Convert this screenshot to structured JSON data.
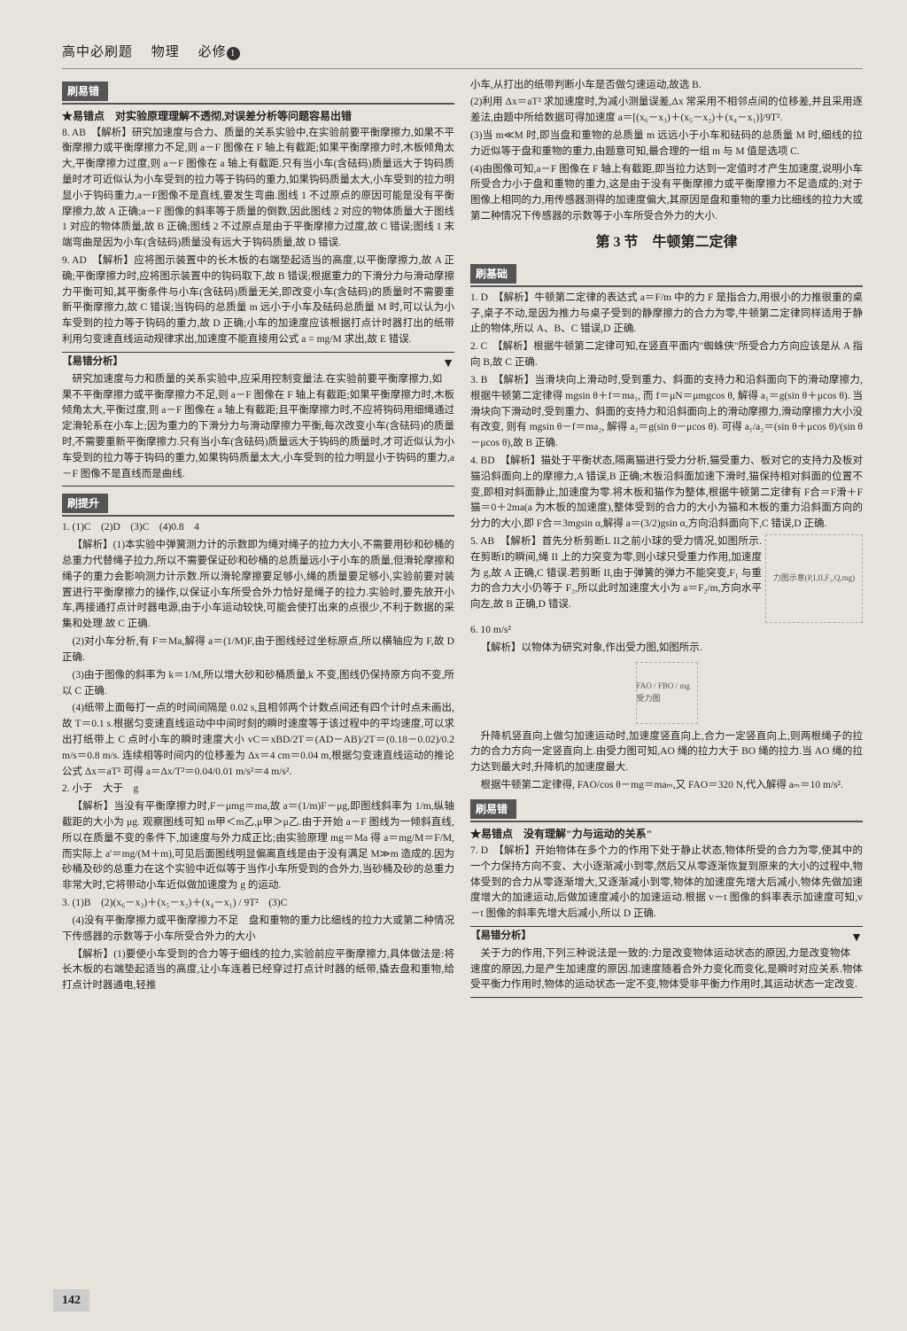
{
  "header": {
    "series": "高中必刷题",
    "subject": "物理",
    "module": "必修",
    "module_num": "1"
  },
  "left_col": {
    "tag1": "刷易错",
    "star1": "★易错点　对实验原理理解不透彻,对误差分析等问题容易出错",
    "q8": "8. AB　【解析】研究加速度与合力、质量的关系实验中,在实验前要平衡摩擦力,如果不平衡摩擦力或平衡摩擦力不足,则 a－F 图像在 F 轴上有截距;如果平衡摩擦力时,木板倾角太大,平衡摩擦力过度,则 a－F 图像在 a 轴上有截距.只有当小车(含砝码)质量远大于钩码质量时才可近似认为小车受到的拉力等于钩码的重力,如果钩码质量太大,小车受到的拉力明显小于钩码重力,a－F图像不是直线,要发生弯曲.图线 1 不过原点的原因可能是没有平衡摩擦力,故 A 正确;a－F 图像的斜率等于质量的倒数,因此图线 2 对应的物体质量大于图线 1 对应的物体质量,故 B 正确;图线 2 不过原点是由于平衡摩擦力过度,故 C 错误;图线 1 末端弯曲是因为小车(含砝码)质量没有远大于钩码质量,故 D 错误.",
    "q9": "9. AD　【解析】应将图示装置中的长木板的右端垫起适当的高度,以平衡摩擦力,故 A 正确;平衡摩擦力时,应将图示装置中的钩码取下,故 B 错误;根据重力的下滑分力与滑动摩擦力平衡可知,其平衡条件与小车(含砝码)质量无关,即改变小车(含砝码)的质量时不需要重新平衡摩擦力,故 C 错误;当钩码的总质量 m 远小于小车及砝码总质量 M 时,可以认为小车受到的拉力等于钩码的重力,故 D 正确;小车的加速度应该根据打点计时器打出的纸带利用匀变速直线运动规律求出,加速度不能直接用公式 a = mg/M 求出,故 E 错误.",
    "analysis_title": "【易错分析】",
    "analysis_body": "研究加速度与力和质量的关系实验中,应采用控制变量法.在实验前要平衡摩擦力,如果不平衡摩擦力或平衡摩擦力不足,则 a－F 图像在 F 轴上有截距;如果平衡摩擦力时,木板倾角太大,平衡过度,则 a－F 图像在 a 轴上有截距;且平衡摩擦力时,不应将钩码用细绳通过定滑轮系在小车上;因为重力的下滑分力与滑动摩擦力平衡,每次改变小车(含砝码)的质量时,不需要重新平衡摩擦力.只有当小车(含砝码)质量远大于钩码的质量时,才可近似认为小车受到的拉力等于钩码的重力,如果钩码质量太大,小车受到的拉力明显小于钩码的重力,a－F 图像不是直线而是曲线.",
    "tag2": "刷提升",
    "q1_ans": "1. (1)C　(2)D　(3)C　(4)0.8　4",
    "q1_1": "【解析】(1)本实验中弹簧测力计的示数即为绳对绳子的拉力大小,不需要用砂和砂桶的总重力代替绳子拉力,所以不需要保证砂和砂桶的总质量远小于小车的质量,但滑轮摩擦和绳子的重力会影响测力计示数.所以滑轮摩擦要足够小,绳的质量要足够小,实验前要对装置进行平衡摩擦力的操作,以保证小车所受合外力恰好是绳子的拉力.实验时,要先放开小车,再接通打点计时器电源,由于小车运动较快,可能会使打出来的点很少,不利于数据的采集和处理.故 C 正确.",
    "q1_2": "(2)对小车分析,有 F＝Ma,解得 a＝(1/M)F,由于图线经过坐标原点,所以横轴应为 F,故 D 正确.",
    "q1_3": "(3)由于图像的斜率为 k＝1/M,所以增大砂和砂桶质量,k 不变,图线仍保持原方向不变,所以 C 正确.",
    "q1_4": "(4)纸带上面每打一点的时间间隔是 0.02 s,且相邻两个计数点间还有四个计时点未画出,故 T＝0.1 s.根据匀变速直线运动中中间时刻的瞬时速度等于该过程中的平均速度,可以求出打纸带上 C 点时小车的瞬时速度大小 vC＝xBD/2T＝(AD－AB)/2T＝(0.18－0.02)/0.2 m/s＝0.8 m/s. 连续相等时间内的位移差为 Δx＝4 cm＝0.04 m,根据匀变速直线运动的推论公式 Δx＝aT² 可得 a＝Δx/T²＝0.04/0.01 m/s²＝4 m/s².",
    "q2_ans": "2. 小于　大于　g",
    "q2_body": "【解析】当没有平衡摩擦力时,F－μmg＝ma,故 a＝(1/m)F－μg,即图线斜率为 1/m,纵轴截距的大小为 μg. 观察图线可知 m甲＜m乙,μ甲＞μ乙.由于开始 a－F 图线为一倾斜直线,所以在质量不变的条件下,加速度与外力成正比;由实验原理 mg＝Ma 得 a＝mg/M＝F/M,而实际上 a'＝mg/(M＋m),可见后面图线明显偏离直线是由于没有满足 M≫m 造成的.因为砂桶及砂的总重力在这个实验中近似等于当作小车所受到的合外力,当砂桶及砂的总重力非常大时,它将带动小车近似做加速度为 g 的运动.",
    "q3_ans": "3. (1)B　(2)(x₆－x₃)＋(x₅－x₂)＋(x₄－x₁) / 9T²　(3)C",
    "q3_body": "(4)没有平衡摩擦力或平衡摩擦力不足　盘和重物的重力比细线的拉力大或第二种情况下传感器的示数等于小车所受合外力的大小",
    "q3_an": "【解析】(1)要使小车受到的合力等于细线的拉力,实验前应平衡摩擦力,具体做法是:将长木板的右端垫起适当的高度,让小车连着已经穿过打点计时器的纸带,撬去盘和重物,给打点计时器通电,轻推"
  },
  "right_col": {
    "r1": "小车,从打出的纸带判断小车是否做匀速运动,故选 B.",
    "r2": "(2)利用 Δx＝aT² 求加速度时,为减小测量误差,Δx 常采用不相邻点间的位移差,并且采用逐差法,由题中所给数据可得加速度 a＝[(x₆－x₃)＋(x₅－x₂)＋(x₄－x₁)]/9T².",
    "r3": "(3)当 m≪M 时,即当盘和重物的总质量 m 远远小于小车和砝码的总质量 M 时,细线的拉力近似等于盘和重物的重力,由题意可知,最合理的一组 m 与 M 值是选项 C.",
    "r4": "(4)由图像可知,a－F 图像在 F 轴上有截距,即当拉力达到一定值时才产生加速度,说明小车所受合力小于盘和重物的重力,这是由于没有平衡摩擦力或平衡摩擦力不足造成的;对于图像上相同的力,用传感器测得的加速度偏大,其原因是盘和重物的重力比细线的拉力大或第二种情况下传感器的示数等于小车所受合外力的大小.",
    "section_title": "第 3 节　牛顿第二定律",
    "tag_basic": "刷基础",
    "rq1": "1. D　【解析】牛顿第二定律的表达式 a＝F/m 中的力 F 是指合力,用很小的力推很重的桌子,桌子不动,是因为推力与桌子受到的静摩擦力的合力为零,牛顿第二定律同样适用于静止的物体,所以 A、B、C 错误,D 正确.",
    "rq2": "2. C　【解析】根据牛顿第二定律可知,在竖直平面内\"蜘蛛侠\"所受合力方向应该是从 A 指向 B,故 C 正确.",
    "rq3": "3. B　【解析】当滑块向上滑动时,受到重力、斜面的支持力和沿斜面向下的滑动摩擦力, 根据牛顿第二定律得 mgsin θ＋f＝ma₁, 而 f＝μN＝μmgcos θ, 解得 a₁＝g(sin θ＋μcos θ). 当滑块向下滑动时,受到重力、斜面的支持力和沿斜面向上的滑动摩擦力,滑动摩擦力大小没有改变, 则有 mgsin θ－f＝ma₂, 解得 a₂＝g(sin θ－μcos θ). 可得 a₁/a₂＝(sin θ＋μcos θ)/(sin θ－μcos θ),故 B 正确.",
    "rq4": "4. BD　【解析】猫处于平衡状态,隔离猫进行受力分析,猫受重力、板对它的支持力及板对猫沿斜面向上的摩擦力,A 错误,B 正确;木板沿斜面加速下滑时,猫保持相对斜面的位置不变,即相对斜面静止,加速度为零.将木板和猫作为整体,根据牛顿第二定律有 F合＝F滑＋F猫＝0＋2ma(a 为木板的加速度),整体受到的合力的大小为猫和木板的重力沿斜面方向的分力的大小,即 F合＝3mgsin α,解得 a＝(3/2)gsin α,方向沿斜面向下,C 错误,D 正确.",
    "rq5_head": "5. AB　【解析】首先分析剪断L II之前小球的受力情况,如图所示.在剪断I的瞬间,绳 II 上的力突变为零,则小球只受重力作用,加速度为 g,故 A 正确,C 错误.若剪断 II,由于弹簧的弹力不能突变,F₁ 与重力的合力大小仍等于 F₂,所以此时加速度大小为 a＝F₂/m,方向水平向左,故 B 正确,D 错误.",
    "rq6_head": "6. 10 m/s²",
    "rq6_body": "【解析】以物体为研究对象,作出受力图,如图所示.",
    "rq6_body2": "升降机竖直向上做匀加速运动时,加速度竖直向上,合力一定竖直向上,则两根绳子的拉力的合力方向一定竖直向上.由受力图可知,AO 绳的拉力大于 BO 绳的拉力.当 AO 绳的拉力达到最大时,升降机的加速度最大.",
    "rq6_body3": "根据牛顿第二定律得, FAO/cos θ－mg＝maₘ,又 FAO＝320 N,代入解得 aₘ＝10 m/s².",
    "tag_err": "刷易错",
    "star2": "★易错点　没有理解\"力与运动的关系\"",
    "rq7": "7. D　【解析】开始物体在多个力的作用下处于静止状态,物体所受的合力为零,使其中的一个力保持方向不变、大小逐渐减小到零,然后又从零逐渐恢复到原来的大小的过程中,物体受到的合力从零逐渐增大,又逐渐减小到零,物体的加速度先增大后减小,物体先做加速度增大的加速运动,后做加速度减小的加速运动.根据 v－t 图像的斜率表示加速度可知,v－t 图像的斜率先增大后减小,所以 D 正确.",
    "analysis2_title": "【易错分析】",
    "analysis2_body": "关于力的作用,下列三种说法是一致的:力是改变物体运动状态的原因,力是改变物体速度的原因,力是产生加速度的原因.加速度随着合外力变化而变化,是瞬时对应关系.物体受平衡力作用时,物体的运动状态一定不变,物体受非平衡力作用时,其运动状态一定改变."
  },
  "page_number": "142",
  "diagrams": {
    "d5": "力图示意(P,I,II,F₂,Q,mg)",
    "d6": "FAO / FBO / mg 受力图"
  }
}
